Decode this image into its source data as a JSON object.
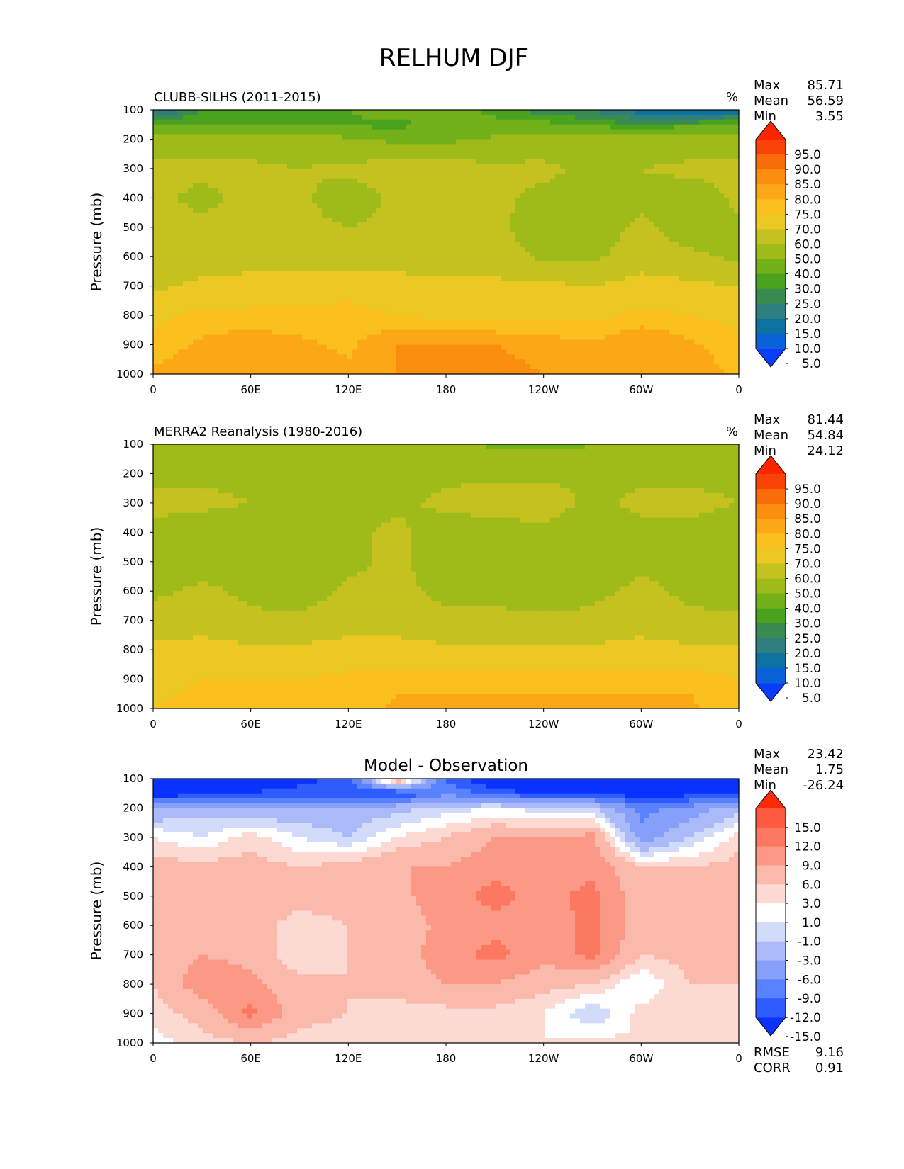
{
  "figure_title": "RELHUM DJF",
  "colors": {
    "abs_levels": [
      5,
      10,
      15,
      20,
      25,
      30,
      40,
      50,
      60,
      70,
      75,
      80,
      85,
      90,
      95
    ],
    "abs_colors": [
      "#0a3cff",
      "#0b62d8",
      "#0d72a0",
      "#2f7f80",
      "#3a8b50",
      "#4aa31e",
      "#72b11a",
      "#9ebb1a",
      "#c5c220",
      "#ecc823",
      "#fbbf1e",
      "#fca716",
      "#fb8e0f",
      "#fa6c0a",
      "#f94306",
      "#fd2400"
    ],
    "diff_levels": [
      -15,
      -12,
      -9,
      -6,
      -3,
      -1,
      1,
      3,
      6,
      9,
      12,
      15
    ],
    "diff_colors": [
      "#0a32ff",
      "#2f5cff",
      "#5a82ff",
      "#869ff8",
      "#aab9f8",
      "#d2dbfa",
      "#ffffff",
      "#fdd9d3",
      "#fbb9ac",
      "#fb9986",
      "#fc7860",
      "#fd5a40",
      "#ff2a08"
    ]
  },
  "panels": [
    {
      "title_left": "CLUBB-SILHS (2011-2015)",
      "title_center": "",
      "units": "%",
      "stats": [
        {
          "label": "Max",
          "value": "85.71"
        },
        {
          "label": "Mean",
          "value": "56.59"
        },
        {
          "label": "Min",
          "value": "3.55"
        }
      ],
      "colorbar_labels": [
        "95.0",
        "90.0",
        "85.0",
        "80.0",
        "75.0",
        "70.0",
        "60.0",
        "50.0",
        "40.0",
        "30.0",
        "25.0",
        "20.0",
        "15.0",
        "10.0",
        "5.0"
      ],
      "chart_data": {
        "type": "heatmap",
        "ylabel": "Pressure (mb)",
        "y_ticks": [
          "100",
          "200",
          "300",
          "400",
          "500",
          "600",
          "700",
          "800",
          "900",
          "1000"
        ],
        "x_ticks": [
          "0",
          "60E",
          "120E",
          "180",
          "120W",
          "60W",
          "0"
        ],
        "longitude": [
          0,
          30,
          60,
          90,
          120,
          150,
          180,
          210,
          240,
          270,
          300,
          330,
          360
        ],
        "pressure": [
          100,
          150,
          200,
          300,
          400,
          500,
          600,
          700,
          800,
          900,
          1000
        ],
        "values": [
          [
            12,
            25,
            27,
            28,
            30,
            38,
            35,
            28,
            22,
            20,
            12,
            8,
            12
          ],
          [
            30,
            30,
            30,
            30,
            28,
            28,
            30,
            32,
            32,
            28,
            25,
            28,
            30
          ],
          [
            45,
            45,
            45,
            45,
            42,
            38,
            38,
            42,
            45,
            45,
            45,
            45,
            45
          ],
          [
            52,
            52,
            52,
            50,
            52,
            55,
            55,
            52,
            52,
            48,
            50,
            52,
            52
          ],
          [
            52,
            48,
            52,
            52,
            45,
            52,
            52,
            52,
            48,
            45,
            48,
            45,
            52
          ],
          [
            52,
            52,
            52,
            52,
            50,
            52,
            55,
            52,
            45,
            45,
            52,
            45,
            48
          ],
          [
            52,
            55,
            55,
            55,
            52,
            55,
            55,
            55,
            48,
            48,
            55,
            52,
            48
          ],
          [
            58,
            62,
            64,
            64,
            68,
            64,
            62,
            62,
            62,
            60,
            64,
            62,
            60
          ],
          [
            68,
            72,
            72,
            72,
            72,
            70,
            68,
            68,
            68,
            68,
            72,
            70,
            68
          ],
          [
            72,
            76,
            78,
            76,
            74,
            80,
            80,
            80,
            78,
            76,
            80,
            76,
            72
          ],
          [
            76,
            79,
            80,
            78,
            76,
            80,
            82,
            82,
            80,
            78,
            80,
            78,
            74
          ]
        ]
      }
    },
    {
      "title_left": "MERRA2 Reanalysis (1980-2016)",
      "title_center": "",
      "units": "%",
      "stats": [
        {
          "label": "Max",
          "value": "81.44"
        },
        {
          "label": "Mean",
          "value": "54.84"
        },
        {
          "label": "Min",
          "value": "24.12"
        }
      ],
      "colorbar_labels": [
        "95.0",
        "90.0",
        "85.0",
        "80.0",
        "75.0",
        "70.0",
        "60.0",
        "50.0",
        "40.0",
        "30.0",
        "25.0",
        "20.0",
        "15.0",
        "10.0",
        "5.0"
      ],
      "chart_data": {
        "type": "heatmap",
        "ylabel": "Pressure (mb)",
        "y_ticks": [
          "100",
          "200",
          "300",
          "400",
          "500",
          "600",
          "700",
          "800",
          "900",
          "1000"
        ],
        "x_ticks": [
          "0",
          "60E",
          "120E",
          "180",
          "120W",
          "60W",
          "0"
        ],
        "longitude": [
          0,
          30,
          60,
          90,
          120,
          150,
          180,
          210,
          240,
          270,
          300,
          330,
          360
        ],
        "pressure": [
          100,
          150,
          200,
          300,
          400,
          500,
          600,
          700,
          800,
          900,
          1000
        ],
        "values": [
          [
            42,
            42,
            42,
            42,
            42,
            42,
            45,
            38,
            35,
            40,
            42,
            42,
            45
          ],
          [
            45,
            45,
            45,
            45,
            45,
            45,
            45,
            45,
            45,
            45,
            45,
            45,
            45
          ],
          [
            48,
            48,
            48,
            48,
            48,
            48,
            48,
            48,
            48,
            48,
            48,
            48,
            48
          ],
          [
            52,
            52,
            50,
            50,
            48,
            48,
            52,
            55,
            55,
            48,
            52,
            52,
            50
          ],
          [
            48,
            45,
            45,
            45,
            48,
            52,
            45,
            45,
            48,
            42,
            48,
            48,
            45
          ],
          [
            48,
            45,
            45,
            45,
            48,
            52,
            45,
            45,
            42,
            45,
            48,
            48,
            45
          ],
          [
            48,
            52,
            48,
            45,
            52,
            52,
            48,
            48,
            45,
            48,
            52,
            48,
            45
          ],
          [
            55,
            55,
            52,
            52,
            55,
            55,
            52,
            52,
            52,
            52,
            55,
            52,
            52
          ],
          [
            62,
            64,
            62,
            62,
            64,
            64,
            62,
            62,
            62,
            62,
            64,
            62,
            62
          ],
          [
            68,
            70,
            70,
            70,
            72,
            74,
            74,
            74,
            74,
            74,
            74,
            74,
            70
          ],
          [
            70,
            72,
            72,
            73,
            72,
            76,
            76,
            76,
            76,
            76,
            76,
            76,
            72
          ]
        ]
      }
    },
    {
      "title_left": "",
      "title_center": "Model - Observation",
      "units": "",
      "stats": [
        {
          "label": "Max",
          "value": "23.42"
        },
        {
          "label": "Mean",
          "value": "1.75"
        },
        {
          "label": "Min",
          "value": "-26.24"
        }
      ],
      "colorbar_labels": [
        "15.0",
        "12.0",
        "9.0",
        "6.0",
        "3.0",
        "1.0",
        "-1.0",
        "-3.0",
        "-6.0",
        "-9.0",
        "-12.0",
        "-15.0"
      ],
      "metrics": [
        {
          "label": "RMSE",
          "value": "9.16"
        },
        {
          "label": "CORR",
          "value": "0.91"
        }
      ],
      "chart_data": {
        "type": "heatmap",
        "ylabel": "Pressure (mb)",
        "y_ticks": [
          "100",
          "200",
          "300",
          "400",
          "500",
          "600",
          "700",
          "800",
          "900",
          "1000"
        ],
        "x_ticks": [
          "0",
          "60E",
          "120E",
          "180",
          "120W",
          "60W",
          "0"
        ],
        "longitude": [
          0,
          30,
          60,
          90,
          120,
          150,
          180,
          210,
          240,
          270,
          300,
          330,
          360
        ],
        "pressure": [
          100,
          150,
          200,
          300,
          400,
          500,
          600,
          700,
          800,
          900,
          1000
        ],
        "values": [
          [
            -28,
            -18,
            -16,
            -16,
            -14,
            8,
            -12,
            -20,
            -22,
            -20,
            -26,
            -28,
            -28
          ],
          [
            -18,
            -16,
            -15,
            -14,
            -14,
            -16,
            -10,
            -12,
            -16,
            -14,
            -18,
            -16,
            -16
          ],
          [
            -6,
            -4,
            -6,
            -5,
            -5,
            -4,
            -2,
            -1,
            -2,
            -3,
            -10,
            -8,
            -4
          ],
          [
            1,
            -1,
            2,
            -1,
            -3,
            1,
            3,
            6,
            6,
            7,
            -8,
            -3,
            2
          ],
          [
            4,
            4,
            4,
            3,
            4,
            6,
            6,
            8,
            7,
            8,
            3,
            3,
            4
          ],
          [
            4,
            6,
            5,
            4,
            4,
            5,
            8,
            10,
            8,
            10,
            4,
            3,
            4
          ],
          [
            4,
            4,
            4,
            2,
            3,
            4,
            7,
            8,
            7,
            10,
            4,
            3,
            4
          ],
          [
            4,
            6,
            5,
            1,
            3,
            4,
            8,
            10,
            7,
            10,
            3,
            4,
            4
          ],
          [
            3,
            8,
            7,
            4,
            3,
            4,
            6,
            6,
            4,
            3,
            -1,
            3,
            3
          ],
          [
            2,
            4,
            10,
            4,
            3,
            2,
            2,
            2,
            1,
            -3,
            2,
            2,
            2
          ],
          [
            0,
            2,
            3,
            2,
            2,
            1,
            1,
            1,
            1,
            2,
            1,
            1,
            1
          ]
        ]
      }
    }
  ]
}
